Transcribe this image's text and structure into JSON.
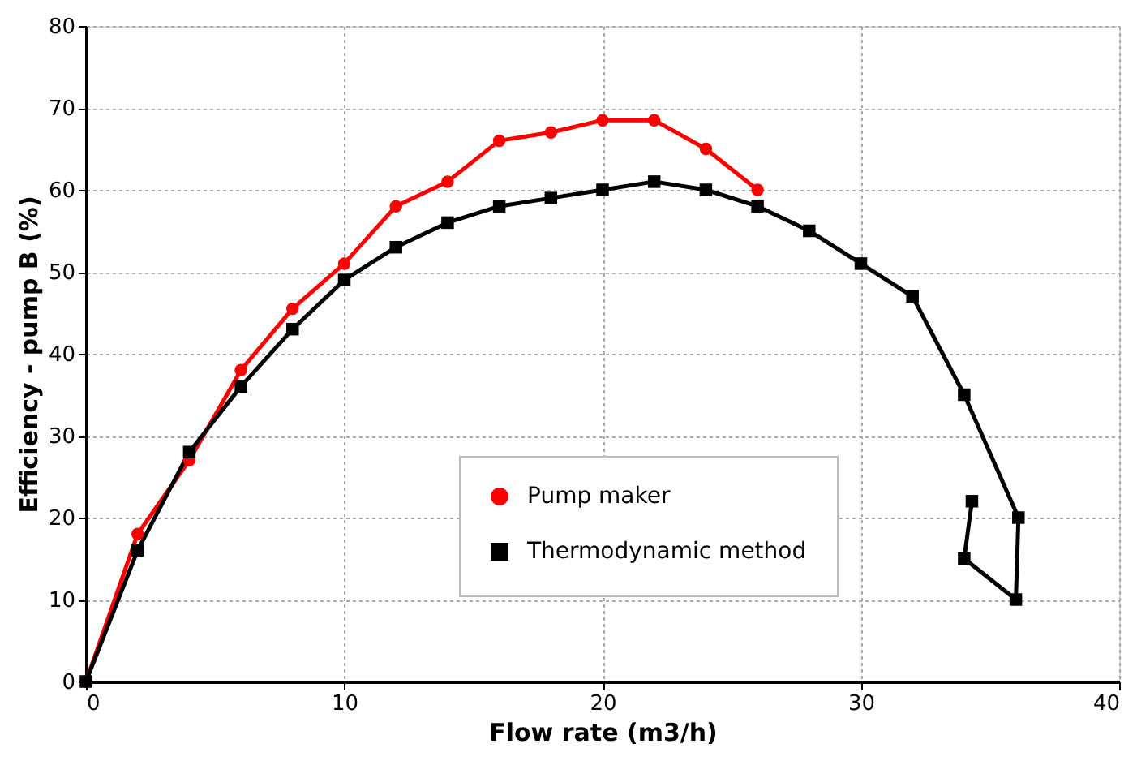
{
  "chart_data": {
    "type": "line",
    "xlabel": "Flow rate (m3/h)",
    "ylabel": "Efficiency - pump B (%)",
    "xlim": [
      0,
      40
    ],
    "xticks": [
      0,
      10,
      20,
      30,
      40
    ],
    "ylim": [
      0,
      80
    ],
    "yticks": [
      0,
      10,
      20,
      30,
      40,
      50,
      60,
      70,
      80
    ],
    "grid": true,
    "legend": "bottom",
    "series": [
      {
        "name": "Pump maker",
        "color": "#ff0000",
        "marker": "circle",
        "x": [
          0,
          2,
          4,
          6,
          8,
          10,
          12,
          14,
          16,
          18,
          20,
          22,
          24,
          26
        ],
        "values": [
          0,
          18,
          27,
          38,
          45.5,
          51,
          58,
          61,
          66,
          67,
          68.5,
          68.5,
          65,
          60
        ]
      },
      {
        "name": "Thermodynamic method",
        "color": "#000000",
        "marker": "square",
        "x": [
          0,
          2,
          4,
          6,
          8,
          10,
          12,
          14,
          16,
          18,
          20,
          22,
          24,
          26,
          28,
          30,
          32,
          34,
          36.1,
          36,
          34,
          34.3
        ],
        "values": [
          0,
          16,
          28,
          36,
          43,
          49,
          53,
          56,
          58,
          59,
          60,
          61,
          60,
          58,
          55,
          51,
          47,
          35,
          20,
          10,
          15,
          22
        ]
      }
    ]
  }
}
